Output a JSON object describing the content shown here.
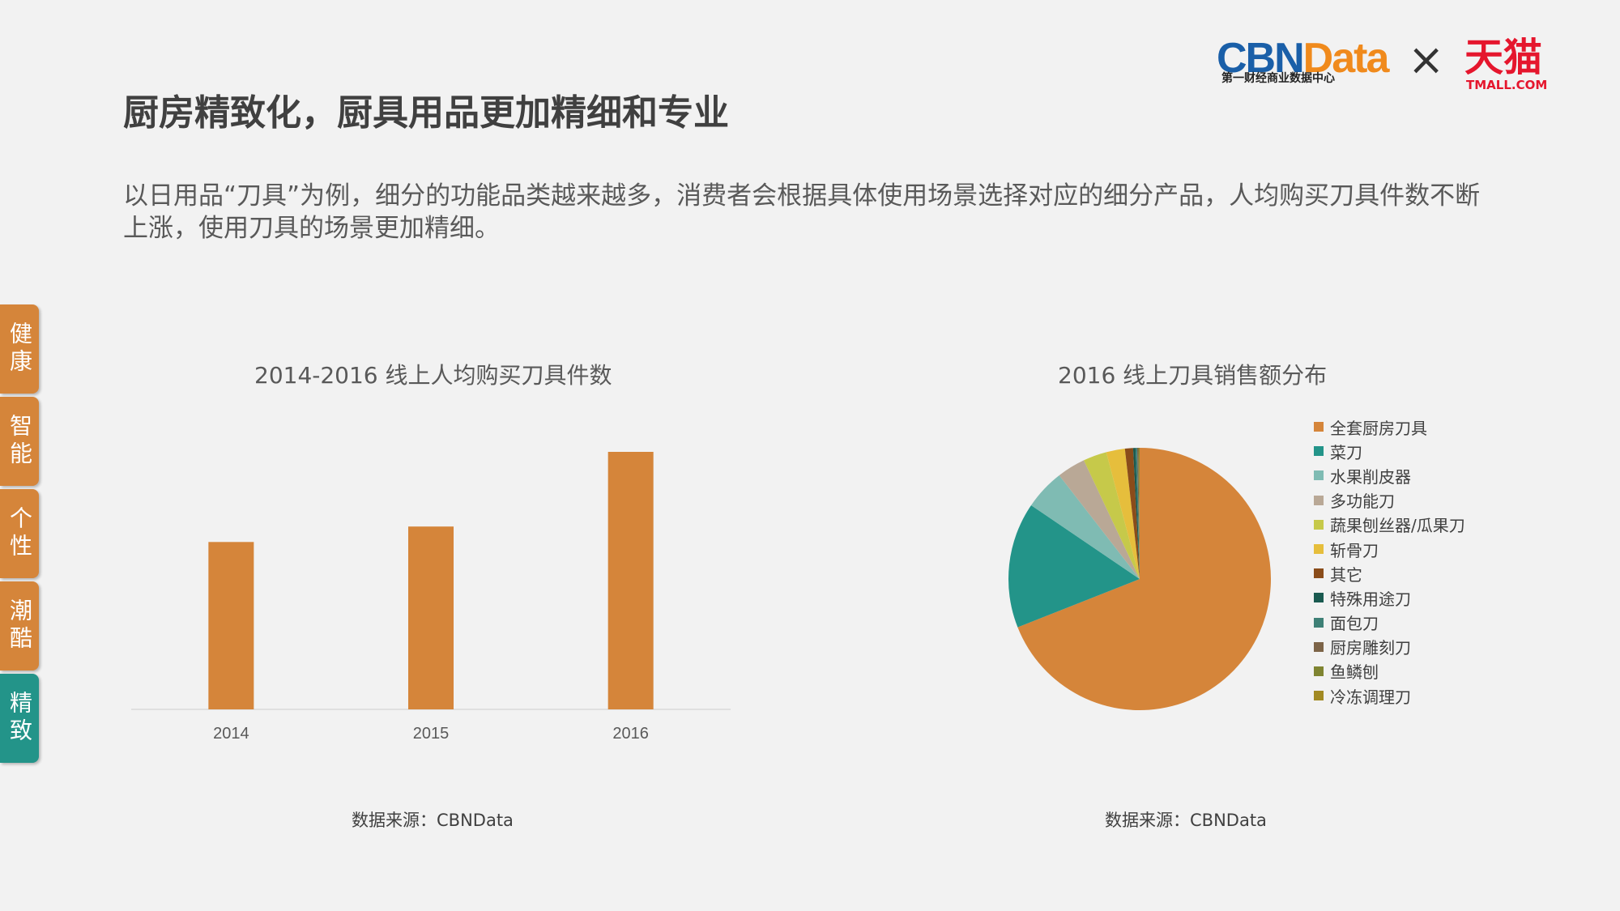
{
  "logo": {
    "cbn_part1": "CBN",
    "cbn_part2": "Data",
    "cbn_sub": "第一财经商业数据中心",
    "cross": "×",
    "tmall_cn": "天猫",
    "tmall_en": "TMALL.COM"
  },
  "page_title": "厨房精致化，厨具用品更加精细和专业",
  "subtitle": "以日用品“刀具”为例，细分的功能品类越来越多，消费者会根据具体使用场景选择对应的细分产品，人均购买刀具件数不断上涨，使用刀具的场景更加精细。",
  "side_tabs": [
    {
      "label": "健康",
      "active": false
    },
    {
      "label": "智能",
      "active": false
    },
    {
      "label": "个性",
      "active": false
    },
    {
      "label": "潮酷",
      "active": false
    },
    {
      "label": "精致",
      "active": true
    }
  ],
  "colors": {
    "accent_orange": "#d5853a",
    "accent_teal": "#239489"
  },
  "chart_data": [
    {
      "type": "bar",
      "title": "2014-2016 线上人均购买刀具件数",
      "categories": [
        "2014",
        "2015",
        "2016"
      ],
      "values": [
        0.65,
        0.71,
        1.0
      ],
      "ylim": [
        0,
        1.0
      ],
      "grid": false,
      "color": "#d5853a",
      "source": "数据来源：CBNData"
    },
    {
      "type": "pie",
      "title": "2016 线上刀具销售额分布",
      "labels": [
        "全套厨房刀具",
        "菜刀",
        "水果削皮器",
        "多功能刀",
        "蔬果刨丝器/瓜果刀",
        "斩骨刀",
        "其它",
        "特殊用途刀",
        "面包刀",
        "厨房雕刻刀",
        "鱼鳞刨",
        "冷冻调理刀"
      ],
      "values": [
        69.0,
        15.5,
        5.0,
        3.5,
        2.9,
        2.3,
        1.0,
        0.3,
        0.2,
        0.15,
        0.1,
        0.05
      ],
      "colors": [
        "#d5853a",
        "#239489",
        "#7fbbb3",
        "#b9a896",
        "#c6c94a",
        "#e6be3c",
        "#8a4c1a",
        "#1a5a50",
        "#3e8076",
        "#7d6448",
        "#7f8431",
        "#a28a23"
      ],
      "legend_position": "right",
      "source": "数据来源：CBNData"
    }
  ]
}
